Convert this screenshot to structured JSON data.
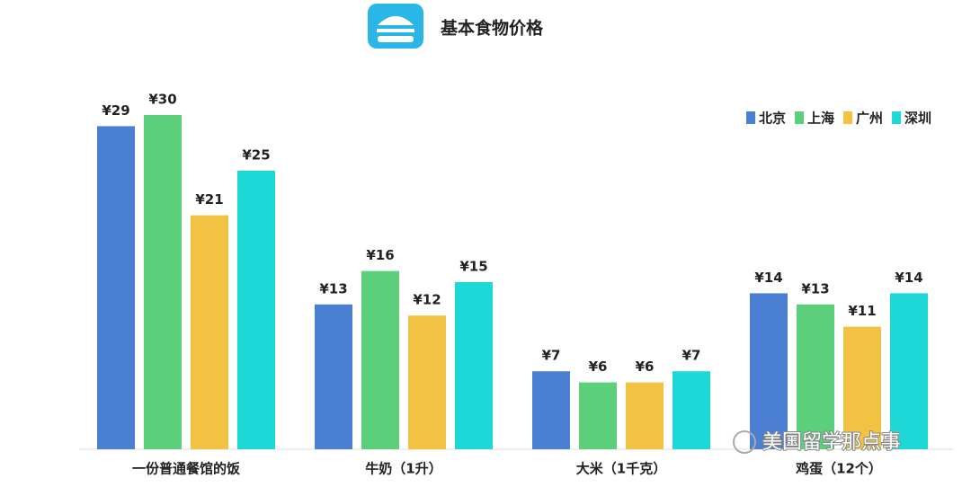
{
  "chart_data": {
    "type": "bar",
    "title": "基本食物价格",
    "categories": [
      "一份普通餐馆的饭",
      "牛奶（1升）",
      "大米（1千克）",
      "鸡蛋（12个）"
    ],
    "series": [
      {
        "name": "北京",
        "color": "#4a7fd4",
        "values": [
          29,
          13,
          7,
          14
        ],
        "value_labels": [
          "¥29",
          "¥13",
          "¥7",
          "¥14"
        ]
      },
      {
        "name": "上海",
        "color": "#5ccf7a",
        "values": [
          30,
          16,
          6,
          13
        ],
        "value_labels": [
          "¥30",
          "¥16",
          "¥6",
          "¥13"
        ]
      },
      {
        "name": "广州",
        "color": "#f2c343",
        "values": [
          21,
          12,
          6,
          11
        ],
        "value_labels": [
          "¥21",
          "¥12",
          "¥6",
          "¥11"
        ]
      },
      {
        "name": "深圳",
        "color": "#1ed8d8",
        "values": [
          25,
          15,
          7,
          14
        ],
        "value_labels": [
          "¥25",
          "¥15",
          "¥7",
          "¥14"
        ]
      }
    ],
    "legend": "top-right",
    "watermark": "美国留学那点事"
  }
}
